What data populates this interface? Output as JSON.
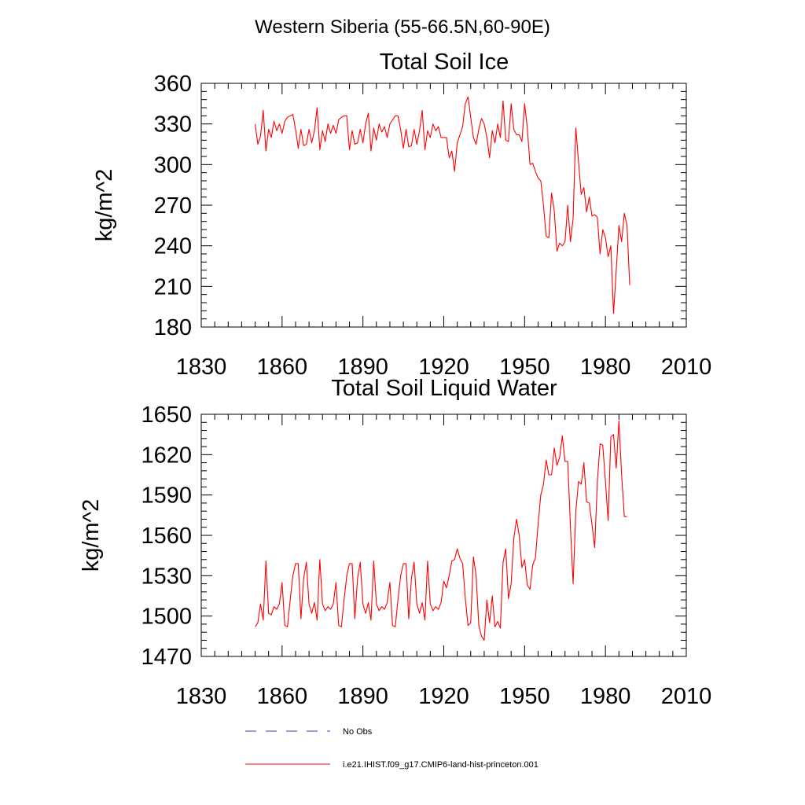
{
  "figure": {
    "title": "Western Siberia (55-66.5N,60-90E)"
  },
  "legend": {
    "entries": [
      {
        "label": "No Obs",
        "color": "#3b3bb5",
        "style": "dashed"
      },
      {
        "label": "i.e21.IHIST.f09_g17.CMIP6-land-hist-princeton.001",
        "color": "#ff0000",
        "style": "solid"
      }
    ]
  },
  "chart_data": [
    {
      "type": "line",
      "title": "Total Soil Ice",
      "xlabel": "",
      "ylabel": "kg/m^2",
      "xlim": [
        1830,
        2010
      ],
      "ylim": [
        180,
        360
      ],
      "xticks": [
        1830,
        1860,
        1890,
        1920,
        1950,
        1980,
        2010
      ],
      "yticks": [
        180,
        210,
        240,
        270,
        300,
        330,
        360
      ],
      "grid": false,
      "series": [
        {
          "color": "#ff0000",
          "x_start": 1850,
          "values": [
            330,
            315,
            321,
            340,
            310,
            326,
            320,
            332,
            325,
            330,
            323,
            332,
            335,
            336,
            337,
            326,
            312,
            326,
            314,
            315,
            326,
            316,
            325,
            342,
            311,
            325,
            317,
            330,
            323,
            329,
            323,
            333,
            335,
            336,
            336,
            311,
            325,
            315,
            316,
            326,
            316,
            330,
            338,
            310,
            327,
            318,
            330,
            324,
            328,
            320,
            330,
            333,
            336,
            336,
            326,
            312,
            326,
            313,
            314,
            326,
            315,
            325,
            340,
            311,
            325,
            320,
            330,
            325,
            328,
            320,
            320,
            320,
            305,
            310,
            295,
            316,
            322,
            328,
            345,
            350,
            335,
            320,
            315,
            326,
            334,
            330,
            320,
            305,
            325,
            316,
            330,
            320,
            347,
            318,
            317,
            345,
            326,
            322,
            322,
            317,
            345,
            327,
            300,
            301,
            295,
            290,
            288,
            270,
            247,
            246,
            279,
            266,
            236,
            242,
            240,
            243,
            270,
            243,
            260,
            327,
            302,
            278,
            283,
            265,
            276,
            262,
            263,
            261,
            234,
            252,
            246,
            232,
            240,
            190,
            222,
            255,
            243,
            264,
            255,
            211
          ]
        }
      ]
    },
    {
      "type": "line",
      "title": "Total Soil Liquid Water",
      "xlabel": "",
      "ylabel": "kg/m^2",
      "xlim": [
        1830,
        2010
      ],
      "ylim": [
        1470,
        1650
      ],
      "xticks": [
        1830,
        1860,
        1890,
        1920,
        1950,
        1980,
        2010
      ],
      "yticks": [
        1470,
        1500,
        1530,
        1560,
        1590,
        1620,
        1650
      ],
      "grid": false,
      "series": [
        {
          "color": "#ff0000",
          "x_start": 1850,
          "values": [
            1492,
            1495,
            1509,
            1497,
            1541,
            1502,
            1501,
            1507,
            1505,
            1509,
            1525,
            1493,
            1492,
            1512,
            1530,
            1539,
            1539,
            1498,
            1528,
            1540,
            1509,
            1502,
            1510,
            1497,
            1542,
            1509,
            1504,
            1507,
            1505,
            1509,
            1525,
            1493,
            1492,
            1512,
            1530,
            1539,
            1539,
            1498,
            1528,
            1540,
            1509,
            1502,
            1510,
            1497,
            1541,
            1509,
            1504,
            1507,
            1505,
            1510,
            1525,
            1493,
            1492,
            1512,
            1530,
            1539,
            1539,
            1498,
            1528,
            1540,
            1509,
            1502,
            1510,
            1497,
            1541,
            1509,
            1504,
            1507,
            1505,
            1510,
            1526,
            1521,
            1530,
            1541,
            1542,
            1550,
            1543,
            1539,
            1513,
            1493,
            1495,
            1544,
            1530,
            1493,
            1485,
            1482,
            1512,
            1495,
            1515,
            1492,
            1496,
            1491,
            1540,
            1550,
            1513,
            1524,
            1558,
            1572,
            1560,
            1536,
            1542,
            1523,
            1520,
            1538,
            1543,
            1568,
            1590,
            1598,
            1616,
            1605,
            1605,
            1625,
            1612,
            1618,
            1634,
            1615,
            1615,
            1567,
            1524,
            1578,
            1600,
            1598,
            1614,
            1585,
            1584,
            1568,
            1551,
            1600,
            1628,
            1627,
            1600,
            1571,
            1633,
            1635,
            1610,
            1645,
            1605,
            1574,
            1574
          ]
        }
      ]
    }
  ]
}
